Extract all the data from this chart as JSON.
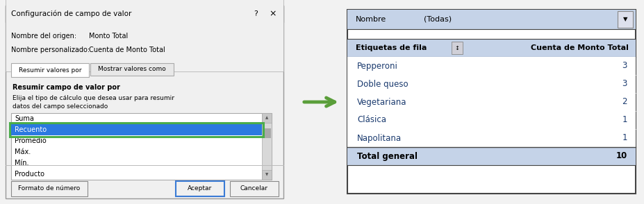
{
  "bg_color": "#f2f2f2",
  "dialog": {
    "title": "Configuración de campo de valor",
    "source_label": "Nombre del origen:",
    "source_value": "Monto Total",
    "custom_label": "Nombre personalizado:",
    "custom_value": "Cuenta de Monto Total",
    "tab1": "Resumir valores por",
    "tab2": "Mostrar valores como",
    "section_title": "Resumir campo de valor por",
    "section_desc1": "Elija el tipo de cálculo que desea usar para resumir",
    "section_desc2": "datos del campo seleccionado",
    "list_items": [
      "Suma",
      "Recuento",
      "Promedio",
      "Máx.",
      "Mín.",
      "Producto"
    ],
    "selected_item": "Recuento",
    "selected_index": 1,
    "btn1": "Formato de número",
    "btn2": "Aceptar",
    "btn3": "Cancelar",
    "selected_bg": "#2b79e0",
    "highlight_border": "#4aad4a",
    "list_bg": "#ffffff",
    "tab_active_bg": "#ffffff",
    "tab_inactive_bg": "#e8e8e8",
    "dialog_bg": "#f0f0f0",
    "title_bar_bg": "#e8e8e8"
  },
  "arrow": {
    "color": "#5a9e3a"
  },
  "pivot_table": {
    "filter_row_bg": "#c5d3e8",
    "filter_label": "Nombre",
    "filter_value": "(Todas)",
    "header_bg": "#c5d3e8",
    "col1_header": "Etiquetas de fila",
    "col2_header": "Cuenta de Monto Total",
    "rows": [
      {
        "label": "Pepperoni",
        "value": "3"
      },
      {
        "label": "Doble queso",
        "value": "3"
      },
      {
        "label": "Vegetariana",
        "value": "2"
      },
      {
        "label": "Clásica",
        "value": "1"
      },
      {
        "label": "Napolitana",
        "value": "1"
      }
    ],
    "total_label": "Total general",
    "total_value": "10",
    "total_bg": "#c5d3e8",
    "text_color": "#1a3a6e",
    "row_bg": "#ffffff"
  }
}
